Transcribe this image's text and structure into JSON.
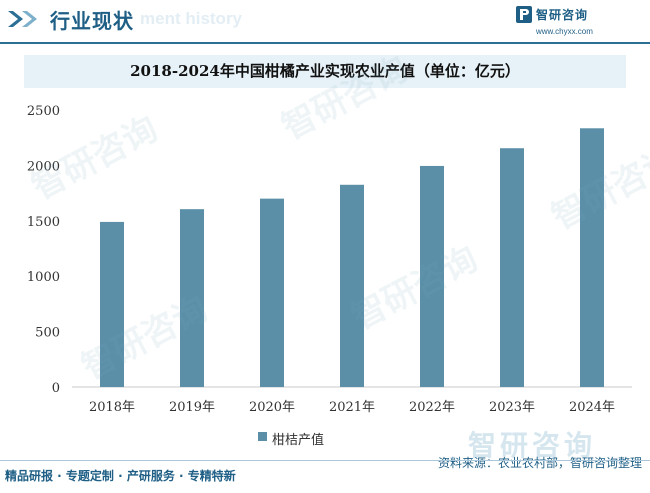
{
  "header": {
    "title": "行业现状",
    "ghost_text": "ment history",
    "brand_name": "智研咨询",
    "brand_url": "www.chyxx.com"
  },
  "watermark": {
    "text": "智研咨询"
  },
  "footer": {
    "left": "精品研报 · 专题定制 · 产研服务 · 专精特新",
    "right": "资料来源：农业农村部，智研咨询整理"
  },
  "colors": {
    "brand": "#1f5f86",
    "bar": "#5b8fa8",
    "title_band": "#e7f2f8"
  },
  "chart_data": {
    "type": "bar",
    "title": "2018-2024年中国柑橘产业实现农业产值（单位：亿元）",
    "categories": [
      "2018年",
      "2019年",
      "2020年",
      "2021年",
      "2022年",
      "2023年",
      "2024年"
    ],
    "series": [
      {
        "name": "柑桔产值",
        "values": [
          1490,
          1605,
          1700,
          1825,
          1995,
          2155,
          2335
        ]
      }
    ],
    "ylim": [
      0,
      2500
    ],
    "yticks": [
      0,
      500,
      1000,
      1500,
      2000,
      2500
    ],
    "xlabel": "",
    "ylabel": "",
    "grid": false,
    "legend": "bottom"
  }
}
